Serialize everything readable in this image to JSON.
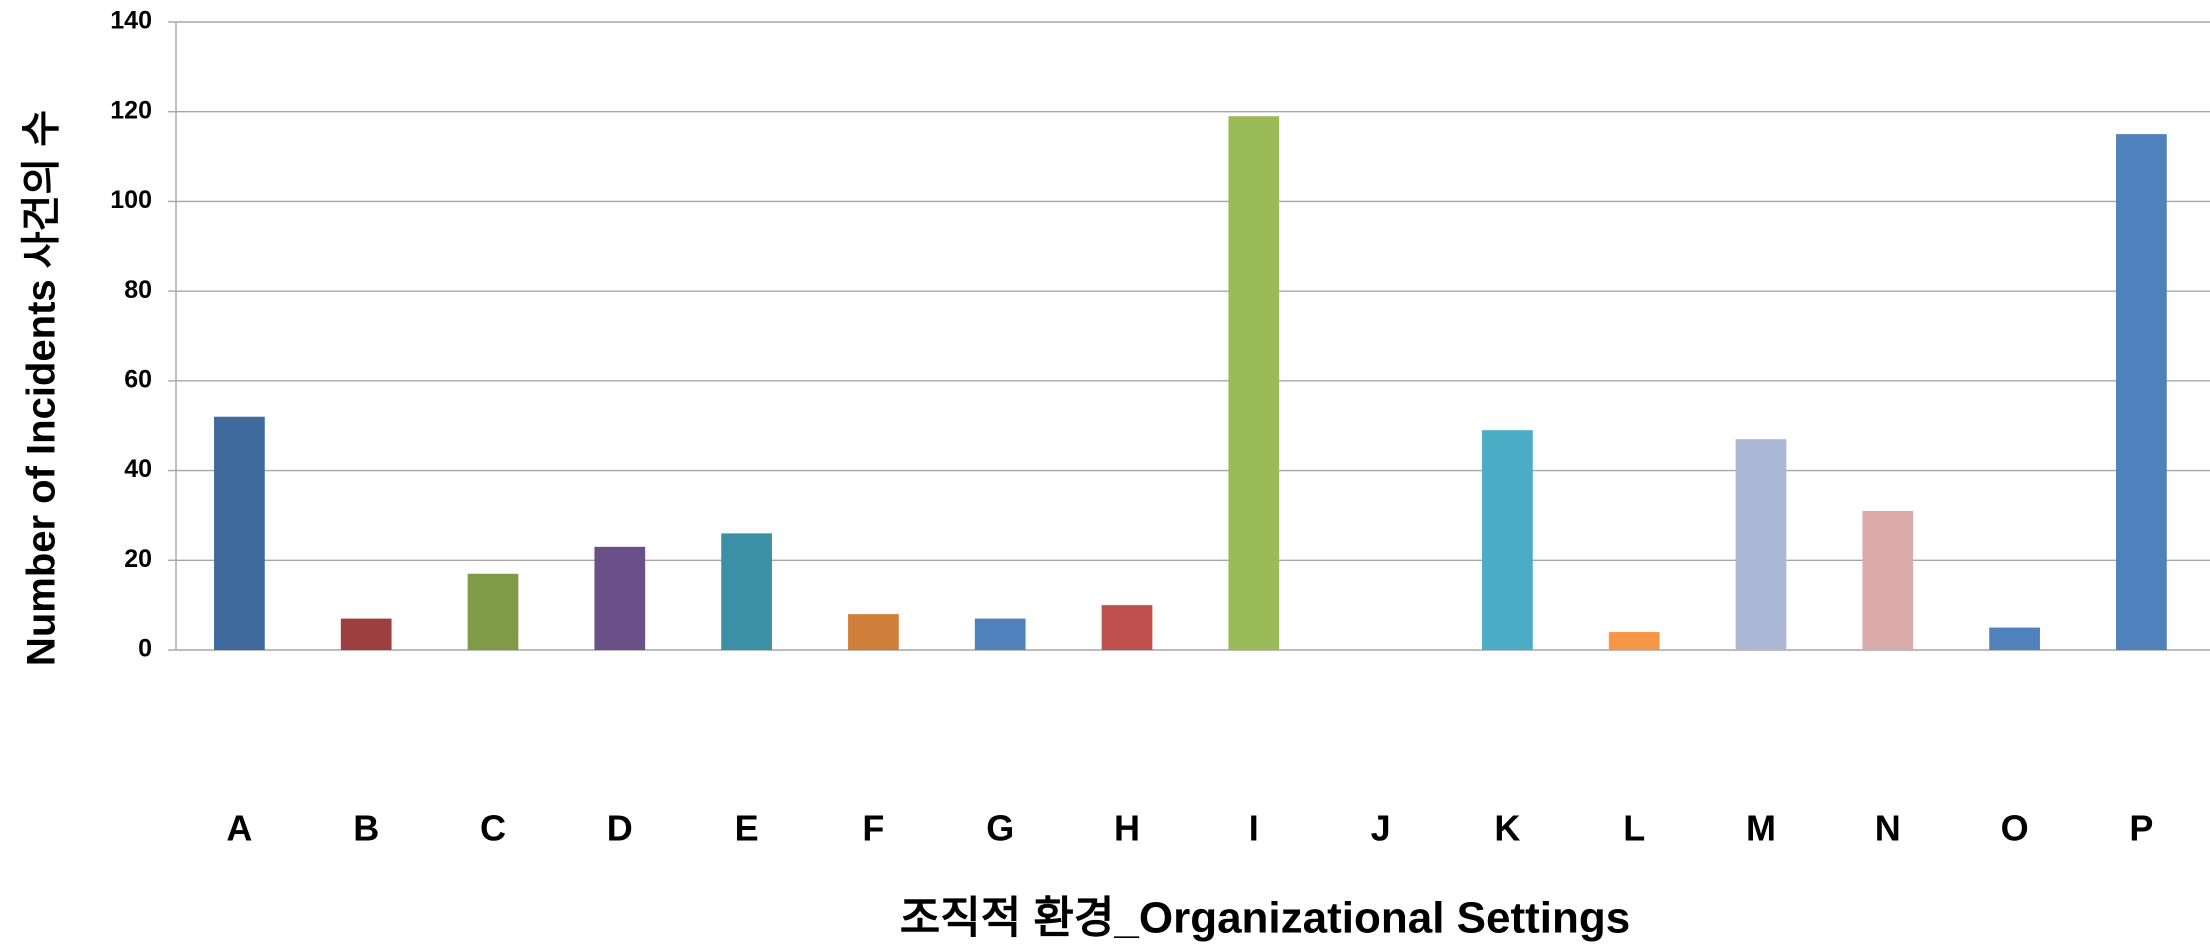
{
  "chart_data": {
    "type": "bar",
    "x_label": "조직적 환경_Organizational Settings",
    "y_label": "Number of Incidents 사건의 수",
    "categories": [
      "A",
      "B",
      "C",
      "D",
      "E",
      "F",
      "G",
      "H",
      "I",
      "J",
      "K",
      "L",
      "M",
      "N",
      "O",
      "P"
    ],
    "values": [
      52,
      7,
      17,
      23,
      26,
      8,
      7,
      10,
      119,
      0,
      49,
      4,
      47,
      31,
      5,
      115
    ],
    "colors": [
      "#3f6a9e",
      "#9e3f3f",
      "#7f9a48",
      "#6a5088",
      "#3c8fa5",
      "#d07f3a",
      "#4f81bd",
      "#c0504d",
      "#9bbb59",
      "#8064a2",
      "#4bacc6",
      "#f79646",
      "#abb9d7",
      "#dbaaaa",
      "#4f81bd",
      "#4f81bd"
    ],
    "ylim": [
      0,
      140
    ],
    "yticks": [
      0,
      20,
      40,
      60,
      80,
      100,
      120,
      140
    ],
    "grid": true
  }
}
